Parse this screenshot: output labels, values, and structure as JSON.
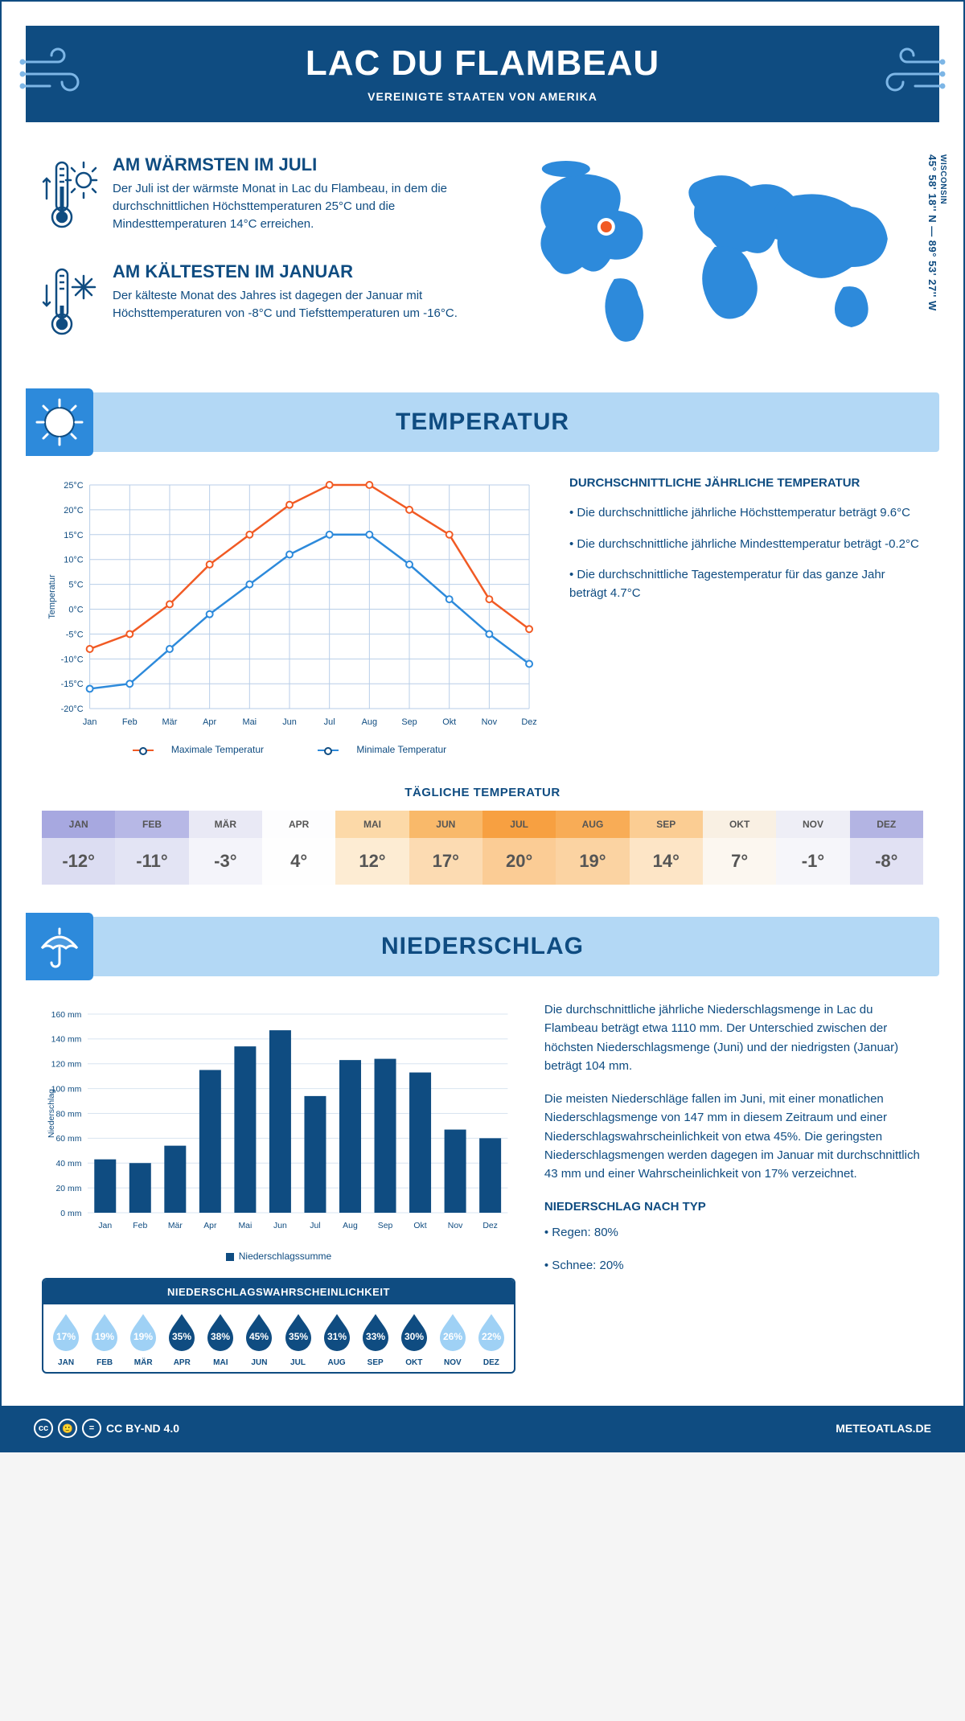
{
  "header": {
    "title": "LAC DU FLAMBEAU",
    "subtitle": "VEREINIGTE STAATEN VON AMERIKA"
  },
  "location": {
    "state": "WISCONSIN",
    "coords": "45° 58' 18'' N — 89° 53' 27'' W"
  },
  "facts": {
    "warm": {
      "title": "AM WÄRMSTEN IM JULI",
      "text": "Der Juli ist der wärmste Monat in Lac du Flambeau, in dem die durchschnittlichen Höchsttemperaturen 25°C und die Mindesttemperaturen 14°C erreichen."
    },
    "cold": {
      "title": "AM KÄLTESTEN IM JANUAR",
      "text": "Der kälteste Monat des Jahres ist dagegen der Januar mit Höchsttemperaturen von -8°C und Tiefsttemperaturen um -16°C."
    }
  },
  "temperature": {
    "heading": "TEMPERATUR",
    "info_title": "DURCHSCHNITTLICHE JÄHRLICHE TEMPERATUR",
    "bullets": [
      "• Die durchschnittliche jährliche Höchsttemperatur beträgt 9.6°C",
      "• Die durchschnittliche jährliche Mindesttemperatur beträgt -0.2°C",
      "• Die durchschnittliche Tagestemperatur für das ganze Jahr beträgt 4.7°C"
    ],
    "legend_max": "Maximale Temperatur",
    "legend_min": "Minimale Temperatur",
    "chart": {
      "months": [
        "Jan",
        "Feb",
        "Mär",
        "Apr",
        "Mai",
        "Jun",
        "Jul",
        "Aug",
        "Sep",
        "Okt",
        "Nov",
        "Dez"
      ],
      "max": [
        -8,
        -5,
        1,
        9,
        15,
        21,
        25,
        25,
        20,
        15,
        2,
        -4
      ],
      "min": [
        -16,
        -15,
        -8,
        -1,
        5,
        11,
        15,
        15,
        9,
        2,
        -5,
        -11
      ],
      "ymin": -20,
      "ymax": 25,
      "ystep": 5,
      "max_color": "#f15a24",
      "min_color": "#2d8adb",
      "grid_color": "#b8cee8",
      "axis_color": "#0f4c81",
      "ylabel": "Temperatur"
    },
    "daily_title": "TÄGLICHE TEMPERATUR",
    "daily": {
      "months": [
        "JAN",
        "FEB",
        "MÄR",
        "APR",
        "MAI",
        "JUN",
        "JUL",
        "AUG",
        "SEP",
        "OKT",
        "NOV",
        "DEZ"
      ],
      "values": [
        "-12°",
        "-11°",
        "-3°",
        "4°",
        "12°",
        "17°",
        "20°",
        "19°",
        "14°",
        "7°",
        "-1°",
        "-8°"
      ],
      "bg_head": [
        "#a7a8e0",
        "#b7b8e6",
        "#e9e9f5",
        "#fdfdfe",
        "#fcd9a8",
        "#f9b96a",
        "#f7a041",
        "#f8ac56",
        "#fbcd93",
        "#f9f0e3",
        "#eeeef6",
        "#b3b4e3"
      ],
      "bg_val": [
        "#dcddf2",
        "#e3e4f4",
        "#f4f4fa",
        "#fefefe",
        "#fdecd3",
        "#fcdbb2",
        "#fbcc95",
        "#fbd3a2",
        "#fde5c6",
        "#fcf7f0",
        "#f6f6fa",
        "#e1e1f3"
      ],
      "text_color": "#555"
    }
  },
  "precipitation": {
    "heading": "NIEDERSCHLAG",
    "chart": {
      "months": [
        "Jan",
        "Feb",
        "Mär",
        "Apr",
        "Mai",
        "Jun",
        "Jul",
        "Aug",
        "Sep",
        "Okt",
        "Nov",
        "Dez"
      ],
      "values": [
        43,
        40,
        54,
        115,
        134,
        147,
        94,
        123,
        124,
        113,
        67,
        60
      ],
      "ymax": 160,
      "ystep": 20,
      "bar_color": "#0f4c81",
      "grid_color": "#d8e4f0",
      "ylabel": "Niederschlag",
      "legend": "Niederschlagssumme"
    },
    "text1": "Die durchschnittliche jährliche Niederschlagsmenge in Lac du Flambeau beträgt etwa 1110 mm. Der Unterschied zwischen der höchsten Niederschlagsmenge (Juni) und der niedrigsten (Januar) beträgt 104 mm.",
    "text2": "Die meisten Niederschläge fallen im Juni, mit einer monatlichen Niederschlagsmenge von 147 mm in diesem Zeitraum und einer Niederschlagswahrscheinlichkeit von etwa 45%. Die geringsten Niederschlagsmengen werden dagegen im Januar mit durchschnittlich 43 mm und einer Wahrscheinlichkeit von 17% verzeichnet.",
    "type_title": "NIEDERSCHLAG NACH TYP",
    "type_bullets": [
      "• Regen: 80%",
      "• Schnee: 20%"
    ],
    "prob_title": "NIEDERSCHLAGSWAHRSCHEINLICHKEIT",
    "prob": {
      "months": [
        "JAN",
        "FEB",
        "MÄR",
        "APR",
        "MAI",
        "JUN",
        "JUL",
        "AUG",
        "SEP",
        "OKT",
        "NOV",
        "DEZ"
      ],
      "values": [
        "17%",
        "19%",
        "19%",
        "35%",
        "38%",
        "45%",
        "35%",
        "31%",
        "33%",
        "30%",
        "26%",
        "22%"
      ],
      "light_fill": "#9fd1f5",
      "dark_fill": "#0f4c81"
    }
  },
  "footer": {
    "license": "CC BY-ND 4.0",
    "site": "METEOATLAS.DE"
  }
}
